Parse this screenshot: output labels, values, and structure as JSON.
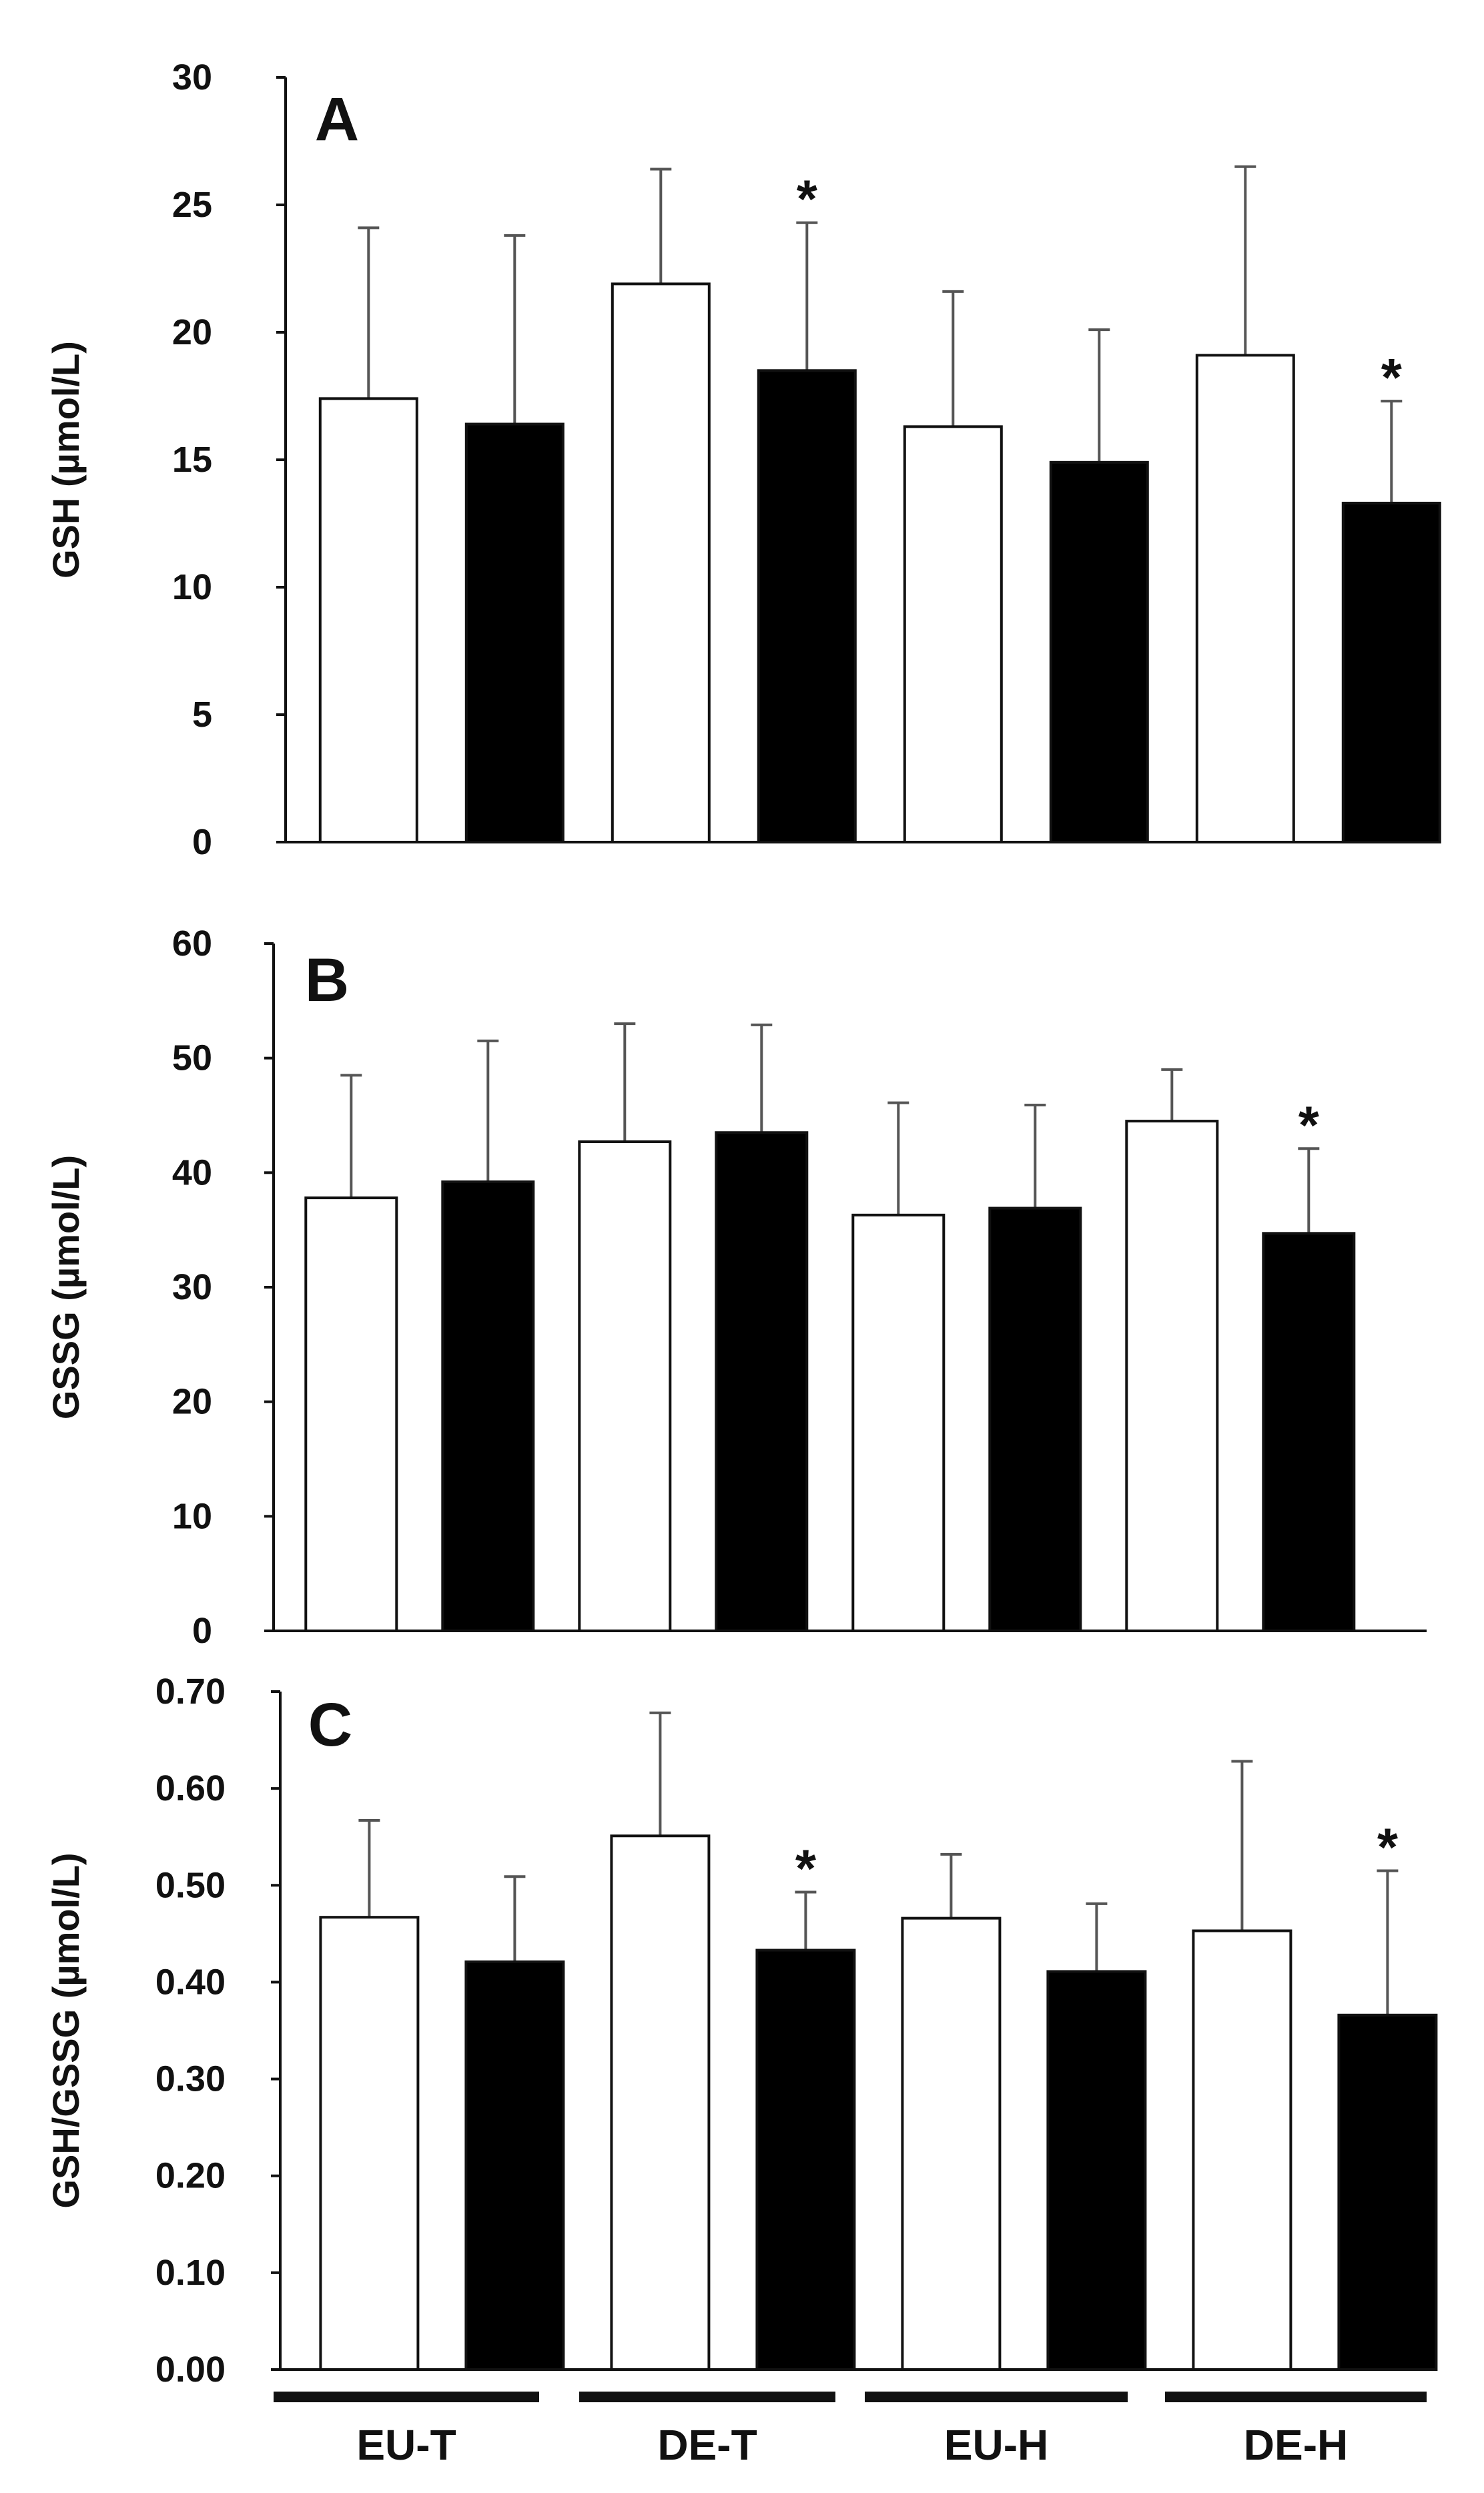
{
  "chart_data": [
    {
      "type": "bar",
      "panel_label": "A",
      "ylabel": "GSH (µmol/L)",
      "ylim": [
        0,
        30
      ],
      "yticks": [
        "0",
        "5",
        "10",
        "15",
        "20",
        "25",
        "30"
      ],
      "bars": [
        {
          "group": "EU-T",
          "fill": "white",
          "value": 17.4,
          "error": 6.7,
          "sig": ""
        },
        {
          "group": "EU-T",
          "fill": "black",
          "value": 16.4,
          "error": 7.4,
          "sig": ""
        },
        {
          "group": "DE-T",
          "fill": "white",
          "value": 21.9,
          "error": 4.5,
          "sig": ""
        },
        {
          "group": "DE-T",
          "fill": "black",
          "value": 18.5,
          "error": 5.8,
          "sig": "*"
        },
        {
          "group": "EU-H",
          "fill": "white",
          "value": 16.3,
          "error": 5.3,
          "sig": ""
        },
        {
          "group": "EU-H",
          "fill": "black",
          "value": 14.9,
          "error": 5.2,
          "sig": ""
        },
        {
          "group": "DE-H",
          "fill": "white",
          "value": 19.1,
          "error": 7.4,
          "sig": ""
        },
        {
          "group": "DE-H",
          "fill": "black",
          "value": 13.3,
          "error": 4.0,
          "sig": "*"
        }
      ]
    },
    {
      "type": "bar",
      "panel_label": "B",
      "ylabel": "GSSG (µmol/L)",
      "ylim": [
        0,
        60
      ],
      "yticks": [
        "0",
        "10",
        "20",
        "30",
        "40",
        "50",
        "60"
      ],
      "bars": [
        {
          "group": "EU-T",
          "fill": "white",
          "value": 37.8,
          "error": 10.7,
          "sig": ""
        },
        {
          "group": "EU-T",
          "fill": "black",
          "value": 39.2,
          "error": 12.3,
          "sig": ""
        },
        {
          "group": "DE-T",
          "fill": "white",
          "value": 42.7,
          "error": 10.3,
          "sig": ""
        },
        {
          "group": "DE-T",
          "fill": "black",
          "value": 43.5,
          "error": 9.4,
          "sig": ""
        },
        {
          "group": "EU-H",
          "fill": "white",
          "value": 36.3,
          "error": 9.8,
          "sig": ""
        },
        {
          "group": "EU-H",
          "fill": "black",
          "value": 36.9,
          "error": 9.0,
          "sig": ""
        },
        {
          "group": "DE-H",
          "fill": "white",
          "value": 44.5,
          "error": 4.5,
          "sig": ""
        },
        {
          "group": "DE-H",
          "fill": "black",
          "value": 34.7,
          "error": 7.4,
          "sig": "*"
        }
      ]
    },
    {
      "type": "bar",
      "panel_label": "C",
      "ylabel": "GSH/GSSG (µmol/L)",
      "ylim": [
        0,
        0.7
      ],
      "yticks": [
        "0.00",
        "0.10",
        "0.20",
        "0.30",
        "0.40",
        "0.50",
        "0.60",
        "0.70"
      ],
      "bars": [
        {
          "group": "EU-T",
          "fill": "white",
          "value": 0.467,
          "error": 0.1,
          "sig": ""
        },
        {
          "group": "EU-T",
          "fill": "black",
          "value": 0.421,
          "error": 0.088,
          "sig": ""
        },
        {
          "group": "DE-T",
          "fill": "white",
          "value": 0.551,
          "error": 0.127,
          "sig": ""
        },
        {
          "group": "DE-T",
          "fill": "black",
          "value": 0.433,
          "error": 0.06,
          "sig": "*"
        },
        {
          "group": "EU-H",
          "fill": "white",
          "value": 0.466,
          "error": 0.066,
          "sig": ""
        },
        {
          "group": "EU-H",
          "fill": "black",
          "value": 0.411,
          "error": 0.07,
          "sig": ""
        },
        {
          "group": "DE-H",
          "fill": "white",
          "value": 0.453,
          "error": 0.175,
          "sig": ""
        },
        {
          "group": "DE-H",
          "fill": "black",
          "value": 0.366,
          "error": 0.149,
          "sig": "*"
        }
      ]
    }
  ],
  "groups": [
    "EU-T",
    "DE-T",
    "EU-H",
    "DE-H"
  ],
  "colors": {
    "axis": "#111111",
    "bar_white": "#ffffff",
    "bar_black": "#000000",
    "errorbar": "#555555"
  }
}
